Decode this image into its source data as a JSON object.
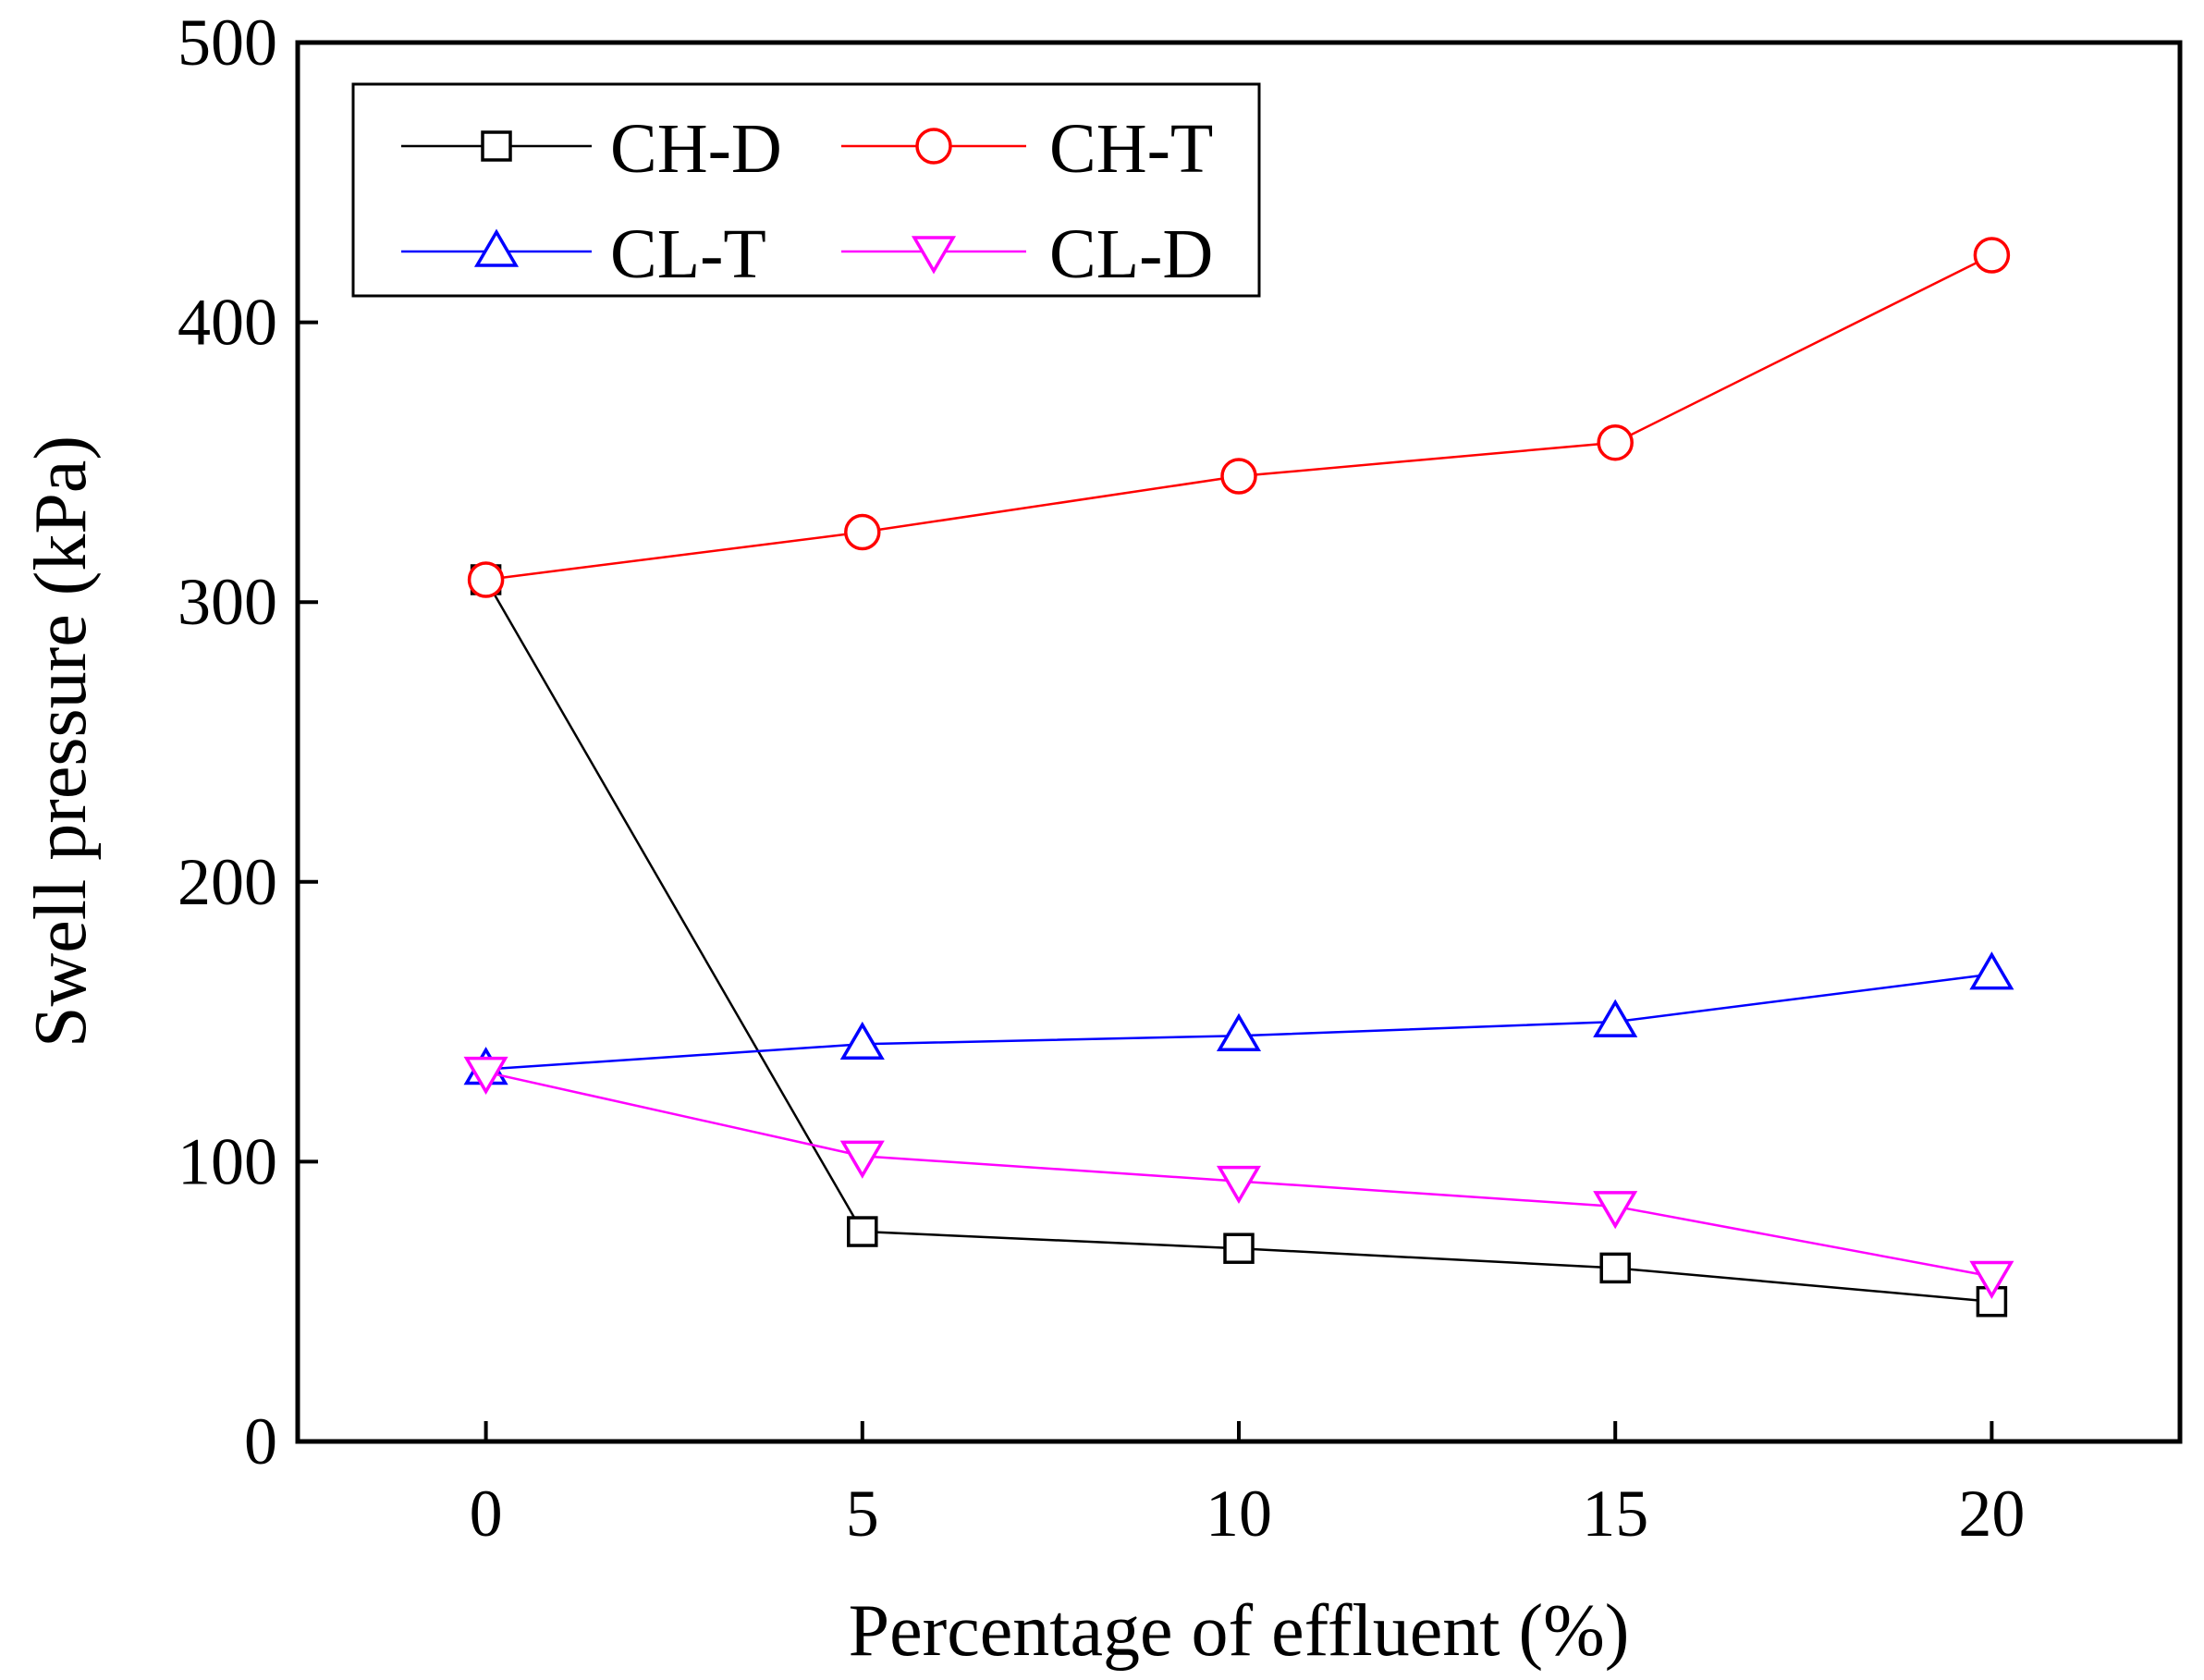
{
  "chart_data": {
    "type": "line",
    "title": "",
    "xlabel": "Percentage of effluent (%)",
    "ylabel": "Swell pressure (kPa)",
    "xlim": [
      -2.5,
      22.5
    ],
    "ylim": [
      0,
      500
    ],
    "xticks": [
      "0",
      "5",
      "10",
      "15",
      "20"
    ],
    "yticks": [
      "0",
      "100",
      "200",
      "300",
      "400",
      "500"
    ],
    "legend_position": "top-left",
    "x": [
      0,
      5,
      10,
      15,
      20
    ],
    "series": [
      {
        "name": "CH-D",
        "color": "#000000",
        "marker": "square",
        "values": [
          308,
          75,
          69,
          62,
          50
        ]
      },
      {
        "name": "CH-T",
        "color": "#ff0000",
        "marker": "circle",
        "values": [
          308,
          325,
          345,
          357,
          424
        ]
      },
      {
        "name": "CL-T",
        "color": "#0000ff",
        "marker": "triangle-up",
        "values": [
          133,
          142,
          145,
          150,
          167
        ]
      },
      {
        "name": "CL-D",
        "color": "#ff00ff",
        "marker": "triangle-down",
        "values": [
          132,
          102,
          93,
          84,
          59
        ]
      }
    ]
  }
}
